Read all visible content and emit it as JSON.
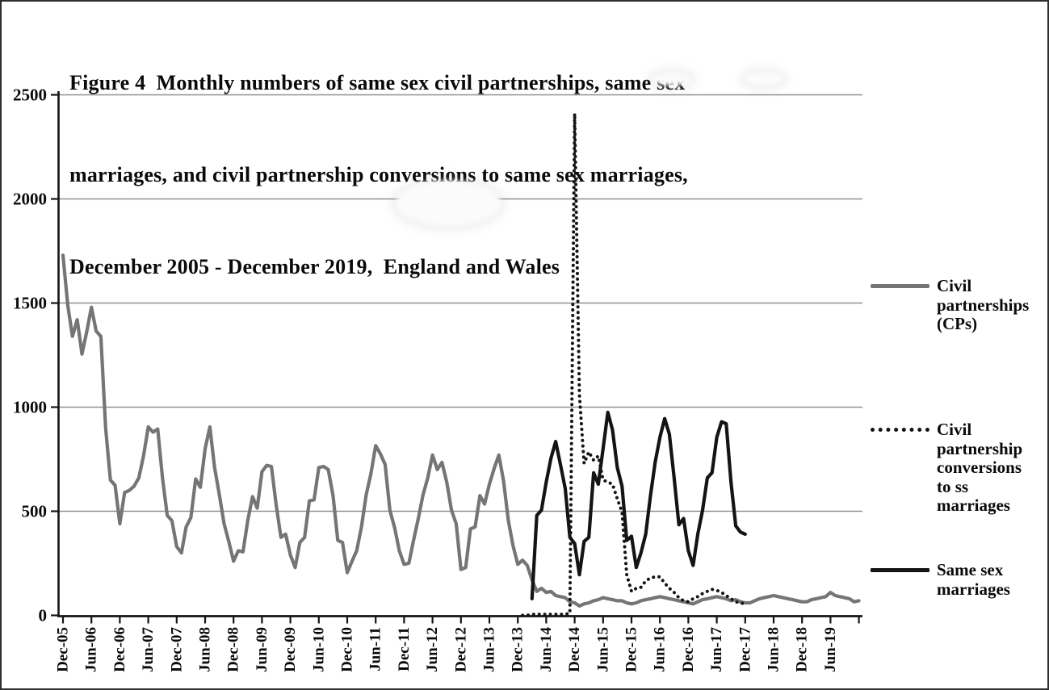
{
  "figure": {
    "title_lines": [
      "Figure 4  Monthly numbers of same sex civil partnerships, same sex",
      "marriages, and civil partnership conversions to same sex marriages,",
      "December 2005 - December 2019,  England and Wales"
    ]
  },
  "legend": {
    "items": [
      {
        "key_style": "solid-gray",
        "lines": [
          "Civil",
          "partnerships",
          "(CPs)"
        ]
      },
      {
        "key_style": "dotted-black",
        "lines": [
          "Civil",
          "partnership",
          "conversions",
          "to ss",
          "marriages"
        ]
      },
      {
        "key_style": "solid-black",
        "lines": [
          "Same sex",
          "marriages"
        ]
      }
    ]
  },
  "chart_data": {
    "type": "line",
    "title": "Figure 4  Monthly numbers of same sex civil partnerships, same sex marriages, and civil partnership conversions to same sex marriages, December 2005 - December 2019, England and Wales",
    "x_unit": "month",
    "x_start_label": "Dec-05",
    "x_end_label": "Dec-19",
    "x_months_total": 169,
    "x_axis": {
      "tick_interval_months": 6,
      "tick_labels": [
        "Dec-05",
        "Jun-06",
        "Dec-06",
        "Jun-07",
        "Dec-07",
        "Jun-08",
        "Dec-08",
        "Jun-09",
        "Dec-09",
        "Jun-10",
        "Dec-10",
        "Jun-11",
        "Dec-11",
        "Jun-12",
        "Dec-12",
        "Jun-13",
        "Dec-13",
        "Jun-14",
        "Dec-14",
        "Jun-15",
        "Dec-15",
        "Jun-16",
        "Dec-16",
        "Jun-17",
        "Dec-17",
        "Jun-18",
        "Dec-18",
        "Jun-19"
      ]
    },
    "y_axis": {
      "ticks": [
        0,
        500,
        1000,
        1500,
        2000,
        2500
      ],
      "ylim": [
        0,
        2500
      ]
    },
    "grid": "horizontal",
    "legend_position": "right",
    "colors": {
      "gray_line": "#757575",
      "black_line": "#141414",
      "gridline": "#8f8f8f",
      "axis": "#141414"
    },
    "series": [
      {
        "name": "Civil partnerships (CPs)",
        "color": "#757575",
        "line_style": "solid",
        "start_month_index": 0,
        "start_month_label": "Dec-05",
        "values": [
          1730,
          1490,
          1340,
          1420,
          1255,
          1360,
          1480,
          1365,
          1340,
          900,
          650,
          625,
          440,
          590,
          600,
          620,
          660,
          765,
          905,
          880,
          895,
          660,
          480,
          455,
          330,
          300,
          425,
          470,
          655,
          615,
          800,
          905,
          710,
          580,
          440,
          355,
          260,
          310,
          305,
          455,
          570,
          515,
          690,
          720,
          715,
          530,
          375,
          390,
          290,
          230,
          350,
          375,
          550,
          555,
          710,
          715,
          700,
          575,
          360,
          350,
          205,
          260,
          310,
          425,
          580,
          680,
          815,
          775,
          725,
          505,
          420,
          310,
          245,
          250,
          360,
          465,
          580,
          660,
          770,
          700,
          735,
          640,
          505,
          440,
          220,
          230,
          415,
          425,
          575,
          535,
          630,
          705,
          770,
          645,
          455,
          335,
          245,
          265,
          240,
          170,
          115,
          130,
          110,
          115,
          95,
          90,
          85,
          65,
          60,
          45,
          55,
          60,
          70,
          75,
          85,
          80,
          75,
          70,
          70,
          60,
          55,
          60,
          70,
          75,
          80,
          85,
          90,
          85,
          80,
          75,
          70,
          65,
          60,
          55,
          65,
          75,
          80,
          85,
          90,
          85,
          80,
          70,
          75,
          65,
          60,
          60,
          70,
          80,
          85,
          90,
          95,
          90,
          85,
          80,
          75,
          70,
          65,
          65,
          75,
          80,
          85,
          90,
          110,
          95,
          90,
          85,
          80,
          65,
          70
        ]
      },
      {
        "name": "Civil partnership conversions to ss marriages",
        "color": "#141414",
        "line_style": "dotted",
        "start_month_index": 97,
        "start_month_label": "Jan-14",
        "values": [
          0,
          0,
          5,
          5,
          5,
          5,
          5,
          5,
          5,
          5,
          10,
          2410,
          1060,
          730,
          785,
          745,
          765,
          650,
          640,
          630,
          560,
          495,
          195,
          115,
          130,
          135,
          165,
          180,
          185,
          185,
          155,
          130,
          110,
          85,
          70,
          65,
          80,
          90,
          105,
          115,
          125,
          120,
          110,
          95,
          80,
          65,
          60,
          55
        ]
      },
      {
        "name": "Same sex marriages",
        "color": "#141414",
        "line_style": "solid",
        "start_month_index": 99,
        "start_month_label": "Mar-14",
        "values": [
          80,
          480,
          505,
          640,
          755,
          835,
          725,
          610,
          375,
          345,
          195,
          355,
          375,
          685,
          630,
          800,
          975,
          890,
          710,
          620,
          360,
          380,
          230,
          300,
          390,
          575,
          735,
          855,
          945,
          870,
          660,
          435,
          465,
          310,
          240,
          390,
          505,
          660,
          685,
          855,
          930,
          920,
          640,
          430,
          400,
          390
        ]
      }
    ]
  }
}
